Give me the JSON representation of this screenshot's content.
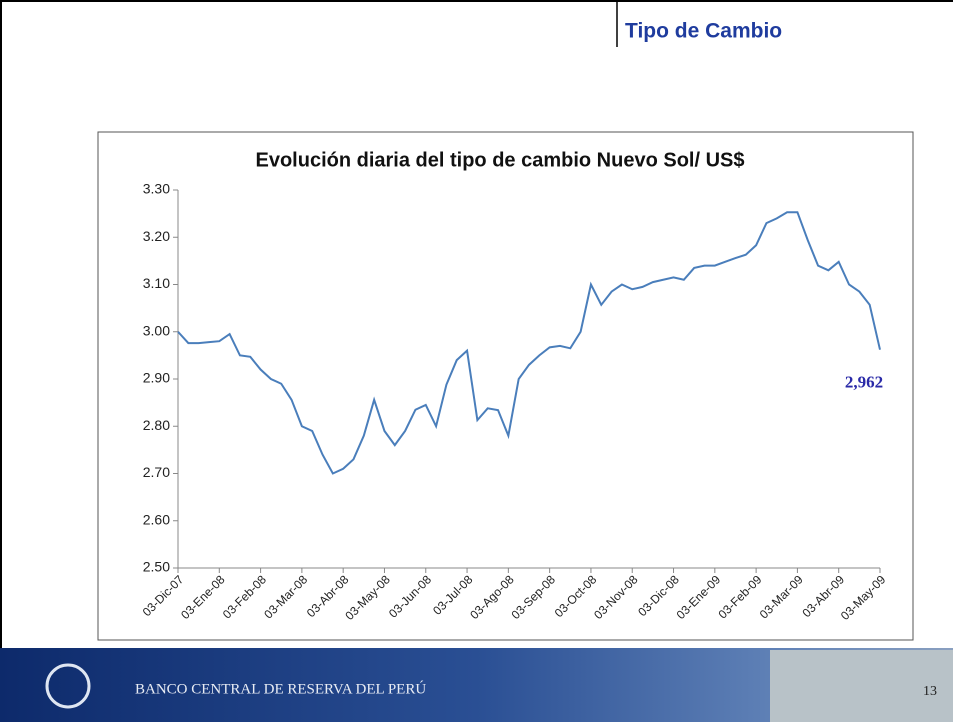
{
  "header": {
    "title": "Tipo de Cambio"
  },
  "footer": {
    "institution": "BANCO CENTRAL DE RESERVA DEL PERÚ",
    "page": "13"
  },
  "chart_data": {
    "type": "line",
    "title": "Evolución diaria del tipo de cambio Nuevo Sol/ US$",
    "categories": [
      "03-Dic-07",
      null,
      null,
      null,
      "03-Ene-08",
      null,
      null,
      null,
      "03-Feb-08",
      null,
      null,
      null,
      "03-Mar-08",
      null,
      null,
      null,
      "03-Abr-08",
      null,
      null,
      null,
      "03-May-08",
      null,
      null,
      null,
      "03-Jun-08",
      null,
      null,
      null,
      "03-Jul-08",
      null,
      null,
      null,
      "03-Ago-08",
      null,
      null,
      null,
      "03-Sep-08",
      null,
      null,
      null,
      "03-Oct-08",
      null,
      null,
      null,
      "03-Nov-08",
      null,
      null,
      null,
      "03-Dic-08",
      null,
      null,
      null,
      "03-Ene-09",
      null,
      null,
      null,
      "03-Feb-09",
      null,
      null,
      null,
      "03-Mar-09",
      null,
      null,
      null,
      "03-Abr-09",
      null,
      null,
      null,
      "03-May-09"
    ],
    "values": [
      3.0,
      2.976,
      2.976,
      2.978,
      2.98,
      2.995,
      2.95,
      2.947,
      2.92,
      2.9,
      2.89,
      2.856,
      2.8,
      2.79,
      2.74,
      2.7,
      2.71,
      2.73,
      2.78,
      2.856,
      2.79,
      2.76,
      2.79,
      2.835,
      2.845,
      2.8,
      2.888,
      2.94,
      2.96,
      2.813,
      2.838,
      2.834,
      2.78,
      2.9,
      2.93,
      2.95,
      2.967,
      2.97,
      2.965,
      3.0,
      3.1,
      3.057,
      3.085,
      3.1,
      3.09,
      3.095,
      3.105,
      3.11,
      3.115,
      3.11,
      3.135,
      3.14,
      3.14,
      3.148,
      3.156,
      3.163,
      3.183,
      3.23,
      3.24,
      3.253,
      3.253,
      3.194,
      3.14,
      3.13,
      3.148,
      3.1,
      3.085,
      3.057,
      2.962
    ],
    "value_labels": [
      null,
      null,
      null,
      null,
      null,
      null,
      null,
      null,
      null,
      null,
      null,
      null,
      null,
      null,
      null,
      null,
      null,
      null,
      null,
      null,
      null,
      null,
      null,
      null,
      null,
      null,
      null,
      null,
      null,
      null,
      null,
      null,
      null,
      null,
      null,
      null,
      null,
      null,
      null,
      null,
      null,
      null,
      null,
      null,
      null,
      null,
      null,
      null,
      null,
      null,
      null,
      null,
      null,
      null,
      null,
      null,
      null,
      null,
      null,
      null,
      null,
      null,
      null,
      null,
      null,
      null,
      null,
      null,
      "2,962"
    ],
    "color": "#4a7ebb",
    "ylim": [
      2.5,
      3.3
    ],
    "yticks": [
      {
        "value": 2.5,
        "label": "2.50"
      },
      {
        "value": 2.6,
        "label": "2.60"
      },
      {
        "value": 2.7,
        "label": "2.70"
      },
      {
        "value": 2.8,
        "label": "2.80"
      },
      {
        "value": 2.9,
        "label": "2.90"
      },
      {
        "value": 3.0,
        "label": "3.00"
      },
      {
        "value": 3.1,
        "label": "3.10"
      },
      {
        "value": 3.2,
        "label": "3.20"
      },
      {
        "value": 3.3,
        "label": "3.30"
      }
    ],
    "grid": false
  }
}
